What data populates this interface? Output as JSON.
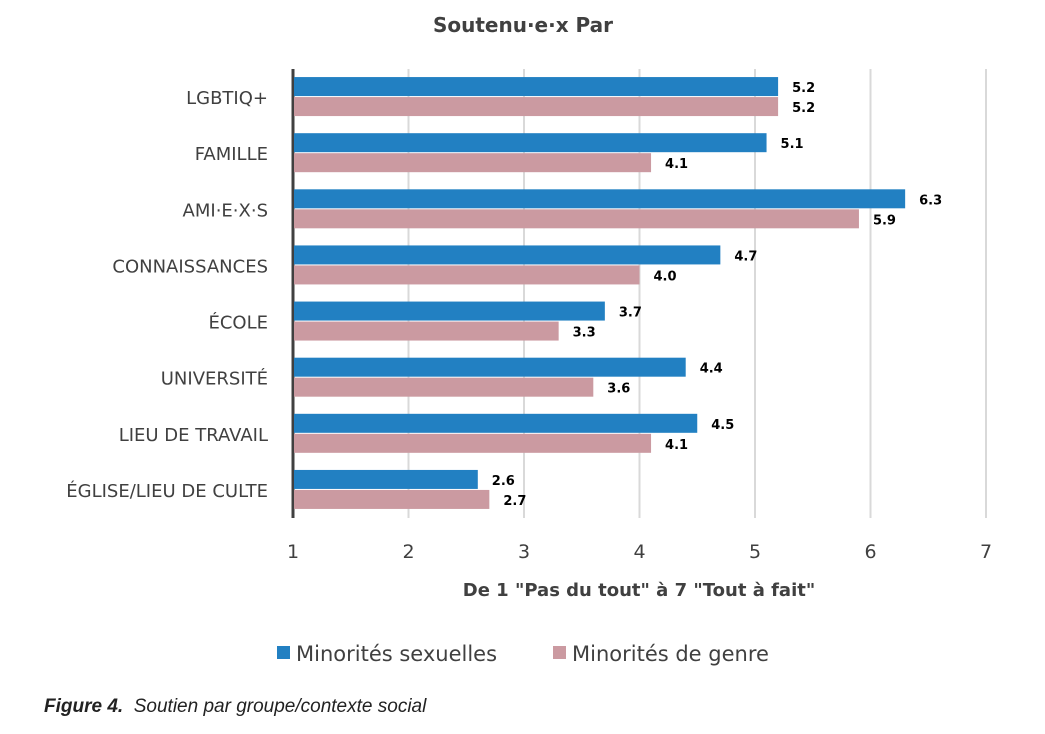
{
  "chart_data": {
    "type": "bar",
    "orientation": "horizontal",
    "title": "Soutenu·e·x Par",
    "xlabel": "De 1 \"Pas du tout\" à 7 \"Tout à fait\"",
    "ylabel": "",
    "xlim": [
      1,
      7
    ],
    "xticks": [
      1,
      2,
      3,
      4,
      5,
      6,
      7
    ],
    "grid": true,
    "legend_placement": "bottom",
    "categories": [
      "LGBTIQ+",
      "FAMILLE",
      "AMI·E·X·S",
      "CONNAISSANCES",
      "ÉCOLE",
      "UNIVERSITÉ",
      "LIEU DE TRAVAIL",
      "ÉGLISE/LIEU DE CULTE"
    ],
    "series": [
      {
        "name": "Minorités sexuelles",
        "color": "#2280c2",
        "values": [
          5.2,
          5.1,
          6.3,
          4.7,
          3.7,
          4.4,
          4.5,
          2.6
        ],
        "labels": [
          "5.2",
          "5.1",
          "6.3",
          "4.7",
          "3.7",
          "4.4",
          "4.5",
          "2.6"
        ]
      },
      {
        "name": "Minorités de genre",
        "color": "#cb9aa1",
        "values": [
          5.2,
          4.1,
          5.9,
          4.0,
          3.3,
          3.6,
          4.1,
          2.7
        ],
        "labels": [
          "5.2",
          "4.1",
          "5.9",
          "4.0",
          "3.3",
          "3.6",
          "4.1",
          "2.7"
        ]
      }
    ]
  },
  "caption": {
    "label": "Figure 4.",
    "text": "Soutien par groupe/contexte social"
  }
}
